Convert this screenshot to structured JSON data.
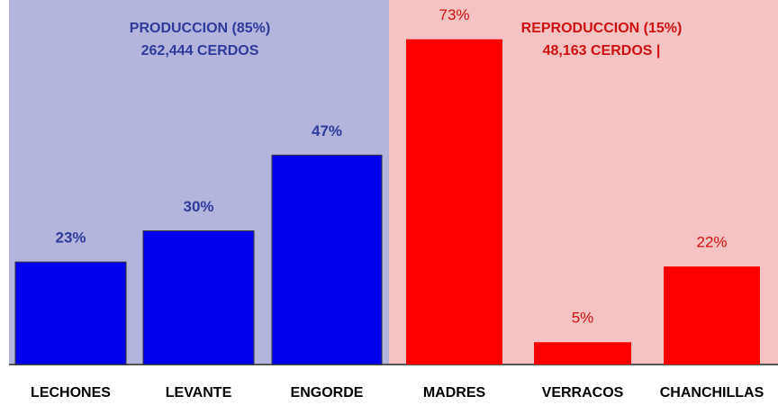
{
  "chart_data": {
    "type": "bar",
    "categories": [
      "LECHONES",
      "LEVANTE",
      "ENGORDE",
      "MADRES",
      "VERRACOS",
      "CHANCHILLAS"
    ],
    "values": [
      23,
      30,
      47,
      73,
      5,
      22
    ],
    "value_labels": [
      "23%",
      "30%",
      "47%",
      "73%",
      "5%",
      "22%"
    ],
    "colors": [
      "#0000ee",
      "#0000ee",
      "#0000ee",
      "#ff0000",
      "#ff0000",
      "#ff0000"
    ],
    "annotations": [
      "PRODUCCION (85%)",
      "262,444   CERDOS",
      "REPRODUCCION  (15%)",
      "48,163 CERDOS |"
    ]
  }
}
